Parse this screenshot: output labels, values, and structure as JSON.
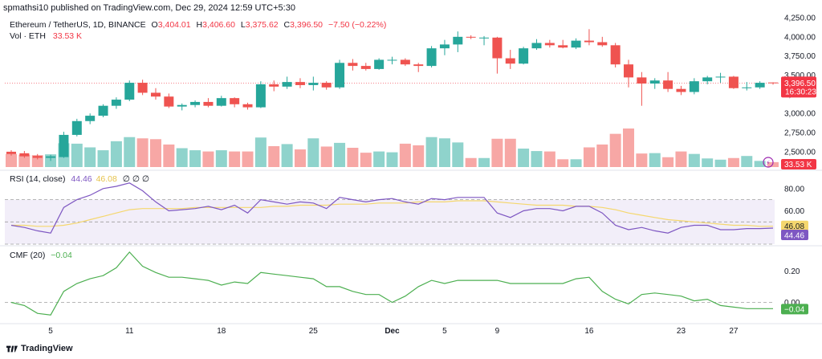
{
  "publisher": "spmathsi10 published on TradingView.com, Dec 29, 2024 12:59 UTC+5:30",
  "header": {
    "symbol": "Ethereum / TetherUS, 1D, BINANCE",
    "o_label": "O",
    "o_value": "3,404.01",
    "h_label": "H",
    "h_value": "3,406.60",
    "l_label": "L",
    "l_value": "3,375.62",
    "c_label": "C",
    "c_value": "3,396.50",
    "change": "−7.50 (−0.22%)",
    "vol_label": "Vol · ETH",
    "vol_value": "33.53 K"
  },
  "rsi_label": {
    "name": "RSI (14, close)",
    "value": "44.46",
    "ma": "46.08",
    "extra": "∅ ∅ ∅"
  },
  "cmf_label": {
    "name": "CMF (20)",
    "value": "−0.04"
  },
  "brand": "TradingView",
  "colors": {
    "up": "#26a69a",
    "down": "#ef5350",
    "up_vol": "#8fd3cc",
    "down_vol": "#f7a7a5",
    "rsi": "#7e57c2",
    "rsi_ma": "#f5d76e",
    "cmf": "#4caf50"
  },
  "chart_data": [
    {
      "type": "candlestick",
      "title": "Ethereum / TetherUS, 1D, BINANCE",
      "ylim": [
        2300,
        4250
      ],
      "y_ticks": [
        "4,250.00",
        "4,000.00",
        "3,750.00",
        "3,500.00",
        "3,250.00",
        "3,000.00",
        "2,750.00",
        "2,500.00"
      ],
      "y_tick_values": [
        4250,
        4000,
        3750,
        3500,
        3250,
        3000,
        2750,
        2500
      ],
      "x_ticks": [
        {
          "label": "5",
          "index": 3
        },
        {
          "label": "11",
          "index": 9
        },
        {
          "label": "18",
          "index": 16
        },
        {
          "label": "25",
          "index": 23
        },
        {
          "label": "Dec",
          "index": 29
        },
        {
          "label": "5",
          "index": 33
        },
        {
          "label": "9",
          "index": 37
        },
        {
          "label": "16",
          "index": 44
        },
        {
          "label": "23",
          "index": 51
        },
        {
          "label": "27",
          "index": 55
        }
      ],
      "last_price_label": "3,396.50",
      "countdown_label": "16:30:23",
      "last_price": 3396.5,
      "ohlc": [
        [
          2500,
          2520,
          2450,
          2470
        ],
        [
          2480,
          2510,
          2420,
          2440
        ],
        [
          2445,
          2470,
          2400,
          2420
        ],
        [
          2420,
          2460,
          2380,
          2440
        ],
        [
          2430,
          2760,
          2420,
          2720
        ],
        [
          2720,
          2930,
          2700,
          2900
        ],
        [
          2900,
          3000,
          2860,
          2970
        ],
        [
          2970,
          3120,
          2950,
          3100
        ],
        [
          3100,
          3210,
          3060,
          3180
        ],
        [
          3180,
          3430,
          3160,
          3400
        ],
        [
          3400,
          3440,
          3240,
          3270
        ],
        [
          3270,
          3330,
          3180,
          3220
        ],
        [
          3220,
          3260,
          3070,
          3090
        ],
        [
          3090,
          3130,
          3040,
          3110
        ],
        [
          3110,
          3170,
          3080,
          3150
        ],
        [
          3150,
          3200,
          3080,
          3100
        ],
        [
          3100,
          3230,
          3090,
          3200
        ],
        [
          3200,
          3210,
          3080,
          3120
        ],
        [
          3120,
          3140,
          3050,
          3080
        ],
        [
          3080,
          3420,
          3070,
          3380
        ],
        [
          3380,
          3430,
          3290,
          3350
        ],
        [
          3350,
          3480,
          3320,
          3410
        ],
        [
          3410,
          3460,
          3330,
          3370
        ],
        [
          3370,
          3480,
          3300,
          3400
        ],
        [
          3400,
          3420,
          3310,
          3340
        ],
        [
          3340,
          3700,
          3320,
          3660
        ],
        [
          3660,
          3710,
          3560,
          3620
        ],
        [
          3620,
          3660,
          3560,
          3580
        ],
        [
          3580,
          3720,
          3570,
          3700
        ],
        [
          3700,
          3740,
          3640,
          3700
        ],
        [
          3700,
          3720,
          3620,
          3640
        ],
        [
          3640,
          3660,
          3540,
          3620
        ],
        [
          3620,
          3880,
          3600,
          3850
        ],
        [
          3850,
          3960,
          3760,
          3900
        ],
        [
          3900,
          4070,
          3800,
          4000
        ],
        [
          4000,
          4020,
          3970,
          3990
        ],
        [
          3990,
          4010,
          3890,
          3990
        ],
        [
          3990,
          4000,
          3520,
          3720
        ],
        [
          3720,
          3830,
          3580,
          3650
        ],
        [
          3650,
          3870,
          3640,
          3850
        ],
        [
          3850,
          3970,
          3830,
          3920
        ],
        [
          3920,
          3960,
          3860,
          3890
        ],
        [
          3890,
          3960,
          3850,
          3860
        ],
        [
          3860,
          3980,
          3840,
          3950
        ],
        [
          3950,
          4100,
          3890,
          3930
        ],
        [
          3930,
          4000,
          3870,
          3890
        ],
        [
          3890,
          3920,
          3600,
          3640
        ],
        [
          3640,
          3700,
          3340,
          3470
        ],
        [
          3470,
          3540,
          3100,
          3390
        ],
        [
          3390,
          3460,
          3320,
          3430
        ],
        [
          3430,
          3540,
          3280,
          3320
        ],
        [
          3320,
          3360,
          3240,
          3280
        ],
        [
          3280,
          3460,
          3250,
          3420
        ],
        [
          3420,
          3490,
          3380,
          3470
        ],
        [
          3470,
          3530,
          3400,
          3480
        ],
        [
          3480,
          3490,
          3320,
          3330
        ],
        [
          3330,
          3410,
          3300,
          3340
        ],
        [
          3340,
          3420,
          3320,
          3400
        ],
        [
          3404.01,
          3406.6,
          3375.62,
          3396.5
        ]
      ]
    },
    {
      "type": "bar",
      "title": "Vol · ETH",
      "last_value_label": "33.53 K",
      "values": [
        32,
        30,
        29,
        31,
        58,
        57,
        48,
        41,
        63,
        73,
        70,
        68,
        55,
        46,
        41,
        38,
        41,
        38,
        38,
        72,
        51,
        56,
        43,
        70,
        50,
        59,
        47,
        35,
        38,
        36,
        57,
        53,
        73,
        70,
        60,
        22,
        22,
        69,
        69,
        45,
        39,
        38,
        19,
        19,
        48,
        55,
        81,
        94,
        33,
        34,
        24,
        38,
        32,
        21,
        18,
        22,
        27,
        15,
        12
      ]
    },
    {
      "type": "line",
      "title": "RSI (14, close)",
      "ylim": [
        30,
        95
      ],
      "y_ticks": [
        "80.00",
        "60.00",
        "40.00"
      ],
      "y_tick_values": [
        80,
        60,
        40
      ],
      "bands": [
        70,
        50,
        30
      ],
      "last_value_label": "44.46",
      "ma_label": "46.08",
      "series": [
        {
          "name": "RSI",
          "values": [
            47,
            45,
            42,
            40,
            63,
            70,
            74,
            80,
            82,
            85,
            78,
            68,
            60,
            61,
            62,
            64,
            61,
            65,
            58,
            70,
            68,
            66,
            68,
            67,
            62,
            72,
            70,
            68,
            70,
            71,
            68,
            66,
            71,
            70,
            72,
            72,
            72,
            58,
            54,
            60,
            62,
            62,
            60,
            64,
            64,
            58,
            47,
            43,
            45,
            42,
            40,
            45,
            47,
            47,
            43,
            43,
            44,
            44,
            44.46
          ]
        },
        {
          "name": "RSI-based MA",
          "values": [
            47,
            47,
            46,
            46,
            47,
            49,
            52,
            55,
            58,
            61,
            62,
            62,
            62,
            62,
            63,
            63,
            63,
            63,
            63,
            63,
            64,
            64,
            65,
            65,
            65,
            66,
            66,
            66,
            67,
            67,
            67,
            68,
            68,
            68,
            69,
            69,
            69,
            68,
            67,
            66,
            65,
            65,
            65,
            64,
            64,
            63,
            61,
            58,
            56,
            54,
            52,
            51,
            50,
            49,
            48,
            47,
            47,
            46,
            46.08
          ]
        }
      ]
    },
    {
      "type": "line",
      "title": "CMF (20)",
      "ylim": [
        -0.12,
        0.35
      ],
      "y_ticks": [
        "0.20",
        "0.00"
      ],
      "y_tick_values": [
        0.2,
        0.0
      ],
      "last_value_label": "−0.04",
      "series": [
        {
          "name": "CMF",
          "values": [
            0.0,
            -0.02,
            -0.07,
            -0.08,
            0.07,
            0.12,
            0.15,
            0.17,
            0.22,
            0.32,
            0.23,
            0.19,
            0.16,
            0.16,
            0.15,
            0.14,
            0.11,
            0.13,
            0.12,
            0.19,
            0.18,
            0.17,
            0.16,
            0.15,
            0.1,
            0.1,
            0.07,
            0.05,
            0.05,
            0.0,
            0.04,
            0.1,
            0.14,
            0.12,
            0.14,
            0.14,
            0.14,
            0.14,
            0.12,
            0.12,
            0.12,
            0.12,
            0.12,
            0.15,
            0.16,
            0.07,
            0.02,
            -0.01,
            0.05,
            0.06,
            0.05,
            0.04,
            0.01,
            0.02,
            -0.02,
            -0.03,
            -0.04,
            -0.04,
            -0.04
          ]
        }
      ]
    }
  ]
}
